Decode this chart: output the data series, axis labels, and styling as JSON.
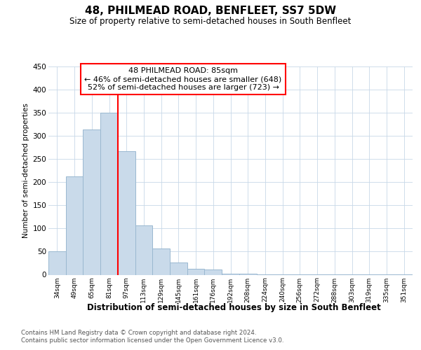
{
  "title": "48, PHILMEAD ROAD, BENFLEET, SS7 5DW",
  "subtitle": "Size of property relative to semi-detached houses in South Benfleet",
  "xlabel": "Distribution of semi-detached houses by size in South Benfleet",
  "ylabel": "Number of semi-detached properties",
  "footnote1": "Contains HM Land Registry data © Crown copyright and database right 2024.",
  "footnote2": "Contains public sector information licensed under the Open Government Licence v3.0.",
  "annotation_line1": "48 PHILMEAD ROAD: 85sqm",
  "annotation_line2": "← 46% of semi-detached houses are smaller (648)",
  "annotation_line3": "52% of semi-detached houses are larger (723) →",
  "bar_labels": [
    "34sqm",
    "49sqm",
    "65sqm",
    "81sqm",
    "97sqm",
    "113sqm",
    "129sqm",
    "145sqm",
    "161sqm",
    "176sqm",
    "192sqm",
    "208sqm",
    "224sqm",
    "240sqm",
    "256sqm",
    "272sqm",
    "288sqm",
    "303sqm",
    "319sqm",
    "335sqm",
    "351sqm"
  ],
  "bar_values": [
    51,
    212,
    314,
    350,
    267,
    106,
    57,
    26,
    13,
    11,
    2,
    2,
    1,
    1,
    1,
    1,
    1,
    1,
    1,
    1,
    1
  ],
  "bar_color": "#c9daea",
  "bar_edge_color": "#9ab8d0",
  "red_line_x": 3.5,
  "ylim": [
    0,
    450
  ],
  "yticks": [
    0,
    50,
    100,
    150,
    200,
    250,
    300,
    350,
    400,
    450
  ]
}
